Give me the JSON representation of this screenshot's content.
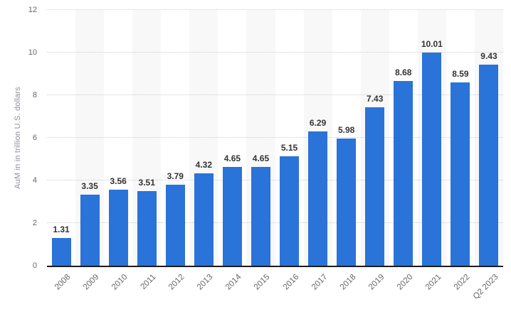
{
  "chart_data": {
    "type": "bar",
    "title": "",
    "xlabel": "",
    "ylabel": "AuM in in trillion U.S. dollars",
    "categories": [
      "2008",
      "2009",
      "2010",
      "2011",
      "2012",
      "2013",
      "2014",
      "2015",
      "2016",
      "2017",
      "2018",
      "2019",
      "2020",
      "2021",
      "2022",
      "Q2 2023"
    ],
    "values": [
      1.31,
      3.35,
      3.56,
      3.51,
      3.79,
      4.32,
      4.65,
      4.65,
      5.15,
      6.29,
      5.98,
      7.43,
      8.68,
      10.01,
      8.59,
      9.43
    ],
    "value_labels": [
      "1.31",
      "3.35",
      "3.56",
      "3.51",
      "3.79",
      "4.32",
      "4.65",
      "4.65",
      "5.15",
      "6.29",
      "5.98",
      "7.43",
      "8.68",
      "10.01",
      "8.59",
      "9.43"
    ],
    "ylim": [
      0,
      12
    ],
    "yticks": [
      0,
      2,
      4,
      6,
      8,
      10,
      12
    ],
    "grid": "horizontal-dotted",
    "legend": null,
    "plot_bands": "alternating vertical stripes, odd columns shaded"
  },
  "colors": {
    "background": "#ffffff",
    "bar": "#2a73d8",
    "plot_band": "#f8f8f8",
    "gridline": "#cccccc",
    "axis_line": "#1c1c1c",
    "value_label": "#333333",
    "tick_label": "#666666",
    "axis_title": "#8a8f99"
  }
}
